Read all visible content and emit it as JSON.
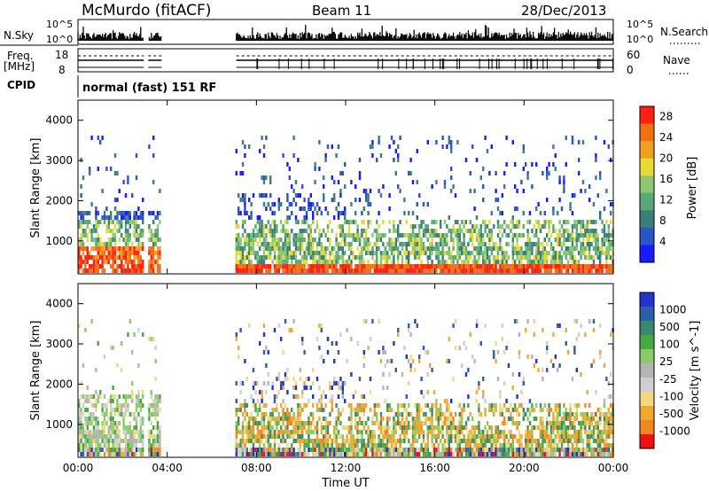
{
  "header": {
    "station": "McMurdo (fitACF)",
    "beam": "Beam 11",
    "date": "28/Dec/2013"
  },
  "noise_panel": {
    "left_label": "N.Sky",
    "left_ticks": [
      "10^5",
      "10^0"
    ],
    "right_label": "N.Search",
    "right_ticks": [
      "10^5",
      "10^0"
    ]
  },
  "freq_panel": {
    "left_label_line1": "Freq.",
    "left_label_line2": "[MHz]",
    "left_ticks": [
      "18",
      "8"
    ],
    "right_label": "Nave",
    "right_ticks": [
      "60",
      "0"
    ]
  },
  "cpid_panel": {
    "label": "CPID",
    "value": "normal (fast) 151 RF"
  },
  "colors": {
    "power_scale": [
      "#1a1aff",
      "#2a55c8",
      "#3a7f7a",
      "#58a878",
      "#8cc870",
      "#e8d838",
      "#f0a020",
      "#f07018",
      "#ff2010"
    ],
    "velocity_scale": [
      "#ee1111",
      "#f08822",
      "#f0a830",
      "#f0d880",
      "#cfcfcf",
      "#b4b4b4",
      "#88cc66",
      "#44aa44",
      "#3a8870",
      "#2a5faa",
      "#2233cc"
    ]
  },
  "chart_data": [
    {
      "type": "heatmap",
      "name": "Power",
      "xlabel": "",
      "ylabel": "Slant Range [km]",
      "x_ticks": [
        "00:00",
        "04:00",
        "08:00",
        "12:00",
        "16:00",
        "20:00",
        "00:00"
      ],
      "x_range_hours": [
        0,
        24
      ],
      "ylim": [
        180,
        4500
      ],
      "y_ticks": [
        1000,
        2000,
        3000,
        4000
      ],
      "colorbar_label": "Power [dB]",
      "colorbar_ticks": [
        4,
        8,
        12,
        16,
        20,
        24,
        28
      ],
      "colorbar_range": [
        0,
        30
      ],
      "data_gap_hours": [
        [
          2.95,
          3.15
        ],
        [
          3.75,
          7.1
        ]
      ],
      "dense_echo_bands_km": [
        [
          200,
          1700
        ]
      ]
    },
    {
      "type": "heatmap",
      "name": "Velocity",
      "xlabel": "Time UT",
      "ylabel": "Slant Range [km]",
      "x_ticks": [
        "00:00",
        "04:00",
        "08:00",
        "12:00",
        "16:00",
        "20:00",
        "00:00"
      ],
      "x_range_hours": [
        0,
        24
      ],
      "ylim": [
        180,
        4500
      ],
      "y_ticks": [
        1000,
        2000,
        3000,
        4000
      ],
      "colorbar_label": "Velocity [m s^-1]",
      "colorbar_ticks": [
        -1000,
        -500,
        -100,
        -25,
        25,
        100,
        500,
        1000
      ],
      "data_gap_hours": [
        [
          2.95,
          3.15
        ],
        [
          3.75,
          7.1
        ]
      ]
    }
  ]
}
